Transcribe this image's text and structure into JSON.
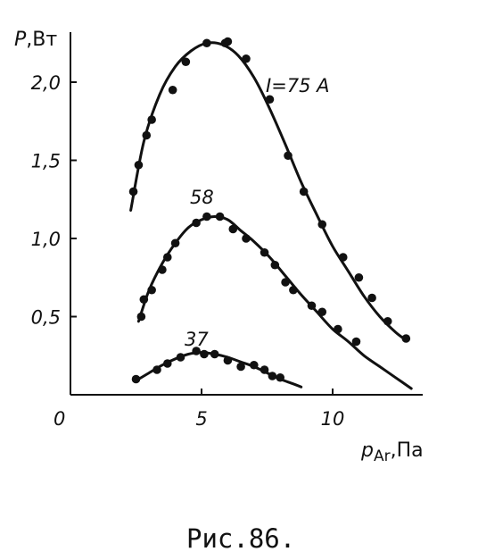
{
  "chart_data": {
    "type": "scatter",
    "title": "",
    "ylabel_main": "P",
    "ylabel_unit": ",Вт",
    "xlabel_main": "p",
    "xlabel_sub": "Ar",
    "xlabel_unit": ",Па",
    "xlim": [
      0,
      13.5
    ],
    "ylim": [
      0,
      2.35
    ],
    "origin_label": "0",
    "x_ticks": [
      {
        "value": 5,
        "label": "5"
      },
      {
        "value": 10,
        "label": "10"
      }
    ],
    "y_ticks": [
      {
        "value": 0.5,
        "label": "0,5"
      },
      {
        "value": 1.0,
        "label": "1,0"
      },
      {
        "value": 1.5,
        "label": "1,5"
      },
      {
        "value": 2.0,
        "label": "2,0"
      }
    ],
    "grid": false,
    "series": [
      {
        "name": "I=75 A",
        "points": [
          [
            2.4,
            1.3
          ],
          [
            2.6,
            1.47
          ],
          [
            2.9,
            1.66
          ],
          [
            3.1,
            1.76
          ],
          [
            3.9,
            1.95
          ],
          [
            4.4,
            2.13
          ],
          [
            5.2,
            2.25
          ],
          [
            5.9,
            2.25
          ],
          [
            6.0,
            2.26
          ],
          [
            6.7,
            2.15
          ],
          [
            7.6,
            1.89
          ],
          [
            8.3,
            1.53
          ],
          [
            8.9,
            1.3
          ],
          [
            9.6,
            1.09
          ],
          [
            10.4,
            0.88
          ],
          [
            11.0,
            0.75
          ],
          [
            11.5,
            0.62
          ],
          [
            12.1,
            0.47
          ],
          [
            12.8,
            0.36
          ]
        ],
        "curve": [
          [
            2.3,
            1.18
          ],
          [
            2.8,
            1.62
          ],
          [
            3.4,
            1.92
          ],
          [
            4.0,
            2.1
          ],
          [
            4.6,
            2.2
          ],
          [
            5.2,
            2.25
          ],
          [
            5.8,
            2.24
          ],
          [
            6.4,
            2.17
          ],
          [
            7.0,
            2.03
          ],
          [
            7.6,
            1.83
          ],
          [
            8.2,
            1.6
          ],
          [
            8.8,
            1.36
          ],
          [
            9.4,
            1.15
          ],
          [
            10.0,
            0.95
          ],
          [
            10.6,
            0.79
          ],
          [
            11.2,
            0.63
          ],
          [
            11.8,
            0.5
          ],
          [
            12.4,
            0.4
          ],
          [
            12.8,
            0.35
          ]
        ]
      },
      {
        "name": "58",
        "points": [
          [
            2.7,
            0.5
          ],
          [
            2.8,
            0.61
          ],
          [
            3.1,
            0.67
          ],
          [
            3.5,
            0.8
          ],
          [
            3.7,
            0.88
          ],
          [
            4.0,
            0.97
          ],
          [
            4.8,
            1.1
          ],
          [
            5.2,
            1.14
          ],
          [
            5.7,
            1.14
          ],
          [
            6.2,
            1.06
          ],
          [
            6.7,
            1.0
          ],
          [
            7.4,
            0.91
          ],
          [
            7.8,
            0.83
          ],
          [
            8.2,
            0.72
          ],
          [
            8.5,
            0.67
          ],
          [
            9.2,
            0.57
          ],
          [
            9.6,
            0.53
          ],
          [
            10.2,
            0.42
          ],
          [
            10.9,
            0.34
          ]
        ],
        "curve": [
          [
            2.6,
            0.47
          ],
          [
            3.0,
            0.67
          ],
          [
            3.5,
            0.84
          ],
          [
            4.0,
            0.97
          ],
          [
            4.5,
            1.07
          ],
          [
            5.0,
            1.12
          ],
          [
            5.5,
            1.14
          ],
          [
            6.0,
            1.12
          ],
          [
            6.5,
            1.05
          ],
          [
            7.0,
            0.98
          ],
          [
            7.6,
            0.88
          ],
          [
            8.2,
            0.76
          ],
          [
            8.8,
            0.64
          ],
          [
            9.4,
            0.53
          ],
          [
            10.0,
            0.42
          ],
          [
            10.6,
            0.34
          ],
          [
            11.2,
            0.25
          ],
          [
            11.8,
            0.18
          ],
          [
            12.4,
            0.11
          ],
          [
            13.0,
            0.04
          ]
        ]
      },
      {
        "name": "37",
        "points": [
          [
            2.5,
            0.1
          ],
          [
            3.3,
            0.16
          ],
          [
            3.7,
            0.2
          ],
          [
            4.2,
            0.24
          ],
          [
            4.8,
            0.28
          ],
          [
            5.1,
            0.26
          ],
          [
            5.5,
            0.26
          ],
          [
            6.0,
            0.22
          ],
          [
            6.5,
            0.18
          ],
          [
            7.0,
            0.19
          ],
          [
            7.4,
            0.16
          ],
          [
            7.7,
            0.12
          ],
          [
            8.0,
            0.11
          ]
        ],
        "curve": [
          [
            2.5,
            0.09
          ],
          [
            3.0,
            0.14
          ],
          [
            3.5,
            0.19
          ],
          [
            4.0,
            0.23
          ],
          [
            4.5,
            0.26
          ],
          [
            5.0,
            0.27
          ],
          [
            5.5,
            0.26
          ],
          [
            6.0,
            0.24
          ],
          [
            6.5,
            0.21
          ],
          [
            7.0,
            0.18
          ],
          [
            7.5,
            0.14
          ],
          [
            8.0,
            0.1
          ],
          [
            8.5,
            0.07
          ],
          [
            8.8,
            0.05
          ]
        ]
      }
    ]
  },
  "caption": "Рис.86."
}
